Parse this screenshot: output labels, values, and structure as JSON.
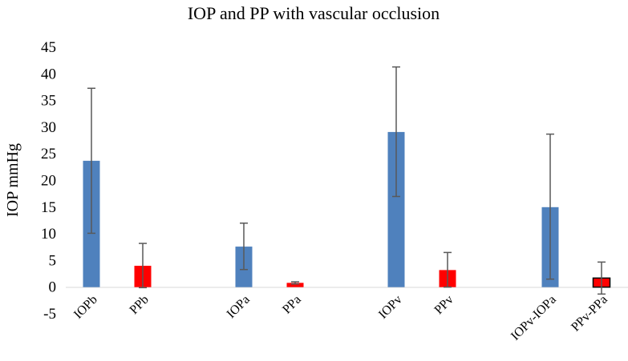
{
  "chart_data": {
    "type": "bar",
    "title": "IOP and PP with vascular occlusion",
    "ylabel": "IOP mmHg",
    "xlabel": "",
    "ylim": [
      -5,
      45
    ],
    "yticks": [
      -5,
      0,
      5,
      10,
      15,
      20,
      25,
      30,
      35,
      40,
      45
    ],
    "grid": false,
    "categories": [
      "IOPb",
      "PPb",
      "IOPa",
      "PPa",
      "IOPv",
      "PPv",
      "IOPv-IOPa",
      "PPv-PPa"
    ],
    "values": [
      23.7,
      4.0,
      7.6,
      0.8,
      29.1,
      3.2,
      15.0,
      1.7
    ],
    "error_upper": [
      37.3,
      8.2,
      12.0,
      1.0,
      41.3,
      6.5,
      28.7,
      4.7
    ],
    "error_lower": [
      10.1,
      -0.1,
      3.3,
      0.6,
      17.0,
      0.0,
      1.5,
      -1.3
    ],
    "colors": [
      "#4f81bd",
      "#ff0000",
      "#4f81bd",
      "#ff0000",
      "#4f81bd",
      "#ff0000",
      "#4f81bd",
      "#ff0000"
    ]
  }
}
